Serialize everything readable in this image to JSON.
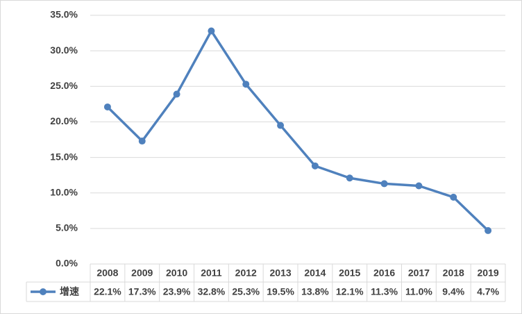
{
  "chart_data": {
    "type": "line",
    "categories": [
      "2008",
      "2009",
      "2010",
      "2011",
      "2012",
      "2013",
      "2014",
      "2015",
      "2016",
      "2017",
      "2018",
      "2019"
    ],
    "series": [
      {
        "name": "增速",
        "color": "#4f81bd",
        "values": [
          22.1,
          17.3,
          23.9,
          32.8,
          25.3,
          19.5,
          13.8,
          12.1,
          11.3,
          11.0,
          9.4,
          4.7
        ],
        "value_labels": [
          "22.1%",
          "17.3%",
          "23.9%",
          "32.8%",
          "25.3%",
          "19.5%",
          "13.8%",
          "12.1%",
          "11.3%",
          "11.0%",
          "9.4%",
          "4.7%"
        ]
      }
    ],
    "ylim": [
      0,
      35
    ],
    "yticks": [
      {
        "value": 0,
        "label": "0.0%"
      },
      {
        "value": 5,
        "label": "5.0%"
      },
      {
        "value": 10,
        "label": "10.0%"
      },
      {
        "value": 15,
        "label": "15.0%"
      },
      {
        "value": 20,
        "label": "20.0%"
      },
      {
        "value": 25,
        "label": "25.0%"
      },
      {
        "value": 30,
        "label": "30.0%"
      },
      {
        "value": 35,
        "label": "35.0%"
      }
    ],
    "grid": true,
    "data_table": true
  }
}
